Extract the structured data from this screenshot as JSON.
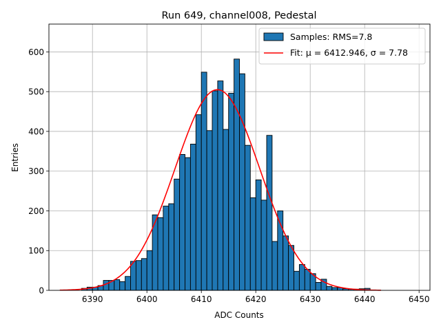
{
  "chart_data": {
    "type": "bar",
    "title": "Run 649, channel008, Pedestal",
    "xlabel": "ADC Counts",
    "ylabel": "Entries",
    "xlim": [
      6382,
      6452
    ],
    "ylim": [
      0,
      670
    ],
    "xticks": [
      6390,
      6400,
      6410,
      6420,
      6430,
      6440,
      6450
    ],
    "yticks": [
      0,
      100,
      200,
      300,
      400,
      500,
      600
    ],
    "grid": true,
    "legend_position": "top-right",
    "bin_width": 1,
    "series": [
      {
        "name": "Samples: RMS=7.8",
        "kind": "histogram",
        "color": "#1f77b4",
        "edge_color": "#000000",
        "bins": [
          {
            "x": 6388,
            "y": 5
          },
          {
            "x": 6389,
            "y": 8
          },
          {
            "x": 6390,
            "y": 8
          },
          {
            "x": 6391,
            "y": 12
          },
          {
            "x": 6392,
            "y": 25
          },
          {
            "x": 6393,
            "y": 25
          },
          {
            "x": 6394,
            "y": 27
          },
          {
            "x": 6395,
            "y": 22
          },
          {
            "x": 6396,
            "y": 35
          },
          {
            "x": 6397,
            "y": 73
          },
          {
            "x": 6398,
            "y": 75
          },
          {
            "x": 6399,
            "y": 80
          },
          {
            "x": 6400,
            "y": 100
          },
          {
            "x": 6401,
            "y": 190
          },
          {
            "x": 6402,
            "y": 183
          },
          {
            "x": 6403,
            "y": 212
          },
          {
            "x": 6404,
            "y": 218
          },
          {
            "x": 6405,
            "y": 280
          },
          {
            "x": 6406,
            "y": 342
          },
          {
            "x": 6407,
            "y": 334
          },
          {
            "x": 6408,
            "y": 368
          },
          {
            "x": 6409,
            "y": 442
          },
          {
            "x": 6410,
            "y": 549
          },
          {
            "x": 6411,
            "y": 402
          },
          {
            "x": 6412,
            "y": 502
          },
          {
            "x": 6413,
            "y": 527
          },
          {
            "x": 6414,
            "y": 405
          },
          {
            "x": 6415,
            "y": 496
          },
          {
            "x": 6416,
            "y": 582
          },
          {
            "x": 6417,
            "y": 545
          },
          {
            "x": 6418,
            "y": 365
          },
          {
            "x": 6419,
            "y": 233
          },
          {
            "x": 6420,
            "y": 278
          },
          {
            "x": 6421,
            "y": 227
          },
          {
            "x": 6422,
            "y": 390
          },
          {
            "x": 6423,
            "y": 123
          },
          {
            "x": 6424,
            "y": 200
          },
          {
            "x": 6425,
            "y": 137
          },
          {
            "x": 6426,
            "y": 113
          },
          {
            "x": 6427,
            "y": 48
          },
          {
            "x": 6428,
            "y": 65
          },
          {
            "x": 6429,
            "y": 53
          },
          {
            "x": 6430,
            "y": 42
          },
          {
            "x": 6431,
            "y": 20
          },
          {
            "x": 6432,
            "y": 28
          },
          {
            "x": 6433,
            "y": 10
          },
          {
            "x": 6434,
            "y": 7
          },
          {
            "x": 6435,
            "y": 7
          },
          {
            "x": 6436,
            "y": 4
          },
          {
            "x": 6437,
            "y": 3
          },
          {
            "x": 6438,
            "y": 3
          },
          {
            "x": 6439,
            "y": 4
          },
          {
            "x": 6440,
            "y": 5
          }
        ]
      },
      {
        "name": "Fit: μ = 6412.946, σ = 7.78",
        "kind": "gaussian-fit",
        "color": "#ff0000",
        "mu": 6412.946,
        "sigma": 7.78,
        "amplitude": 505,
        "x_range": [
          6384,
          6443
        ]
      }
    ]
  }
}
